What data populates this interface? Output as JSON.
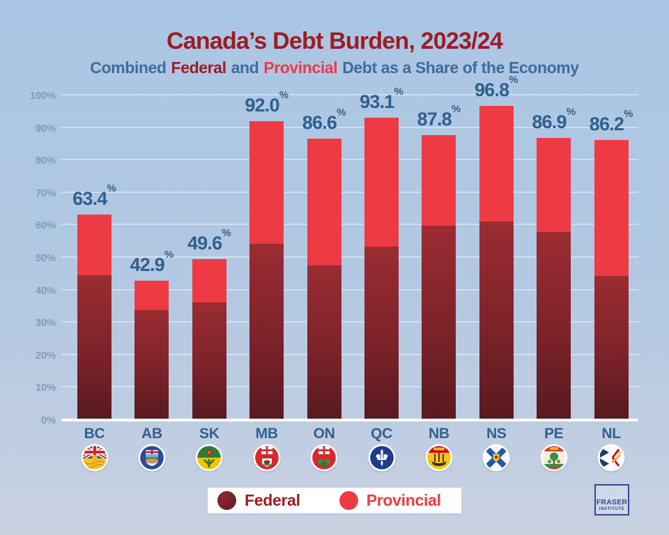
{
  "header": {
    "title": "Canada’s Debt Burden, 2023/24",
    "subtitle_combined": "Combined",
    "subtitle_federal": "Federal",
    "subtitle_and": "and",
    "subtitle_provincial": "Provincial",
    "subtitle_rest": "Debt as a Share of the Economy"
  },
  "chart_data": {
    "type": "bar",
    "stacked": true,
    "title": "Canada’s Debt Burden, 2023/24",
    "subtitle": "Combined Federal and Provincial Debt as a Share of the Economy",
    "categories": [
      "BC",
      "AB",
      "SK",
      "MB",
      "ON",
      "QC",
      "NB",
      "NS",
      "PE",
      "NL"
    ],
    "flag_icons": [
      "flag-bc-icon",
      "flag-ab-icon",
      "flag-sk-icon",
      "flag-mb-icon",
      "flag-on-icon",
      "flag-qc-icon",
      "flag-nb-icon",
      "flag-ns-icon",
      "flag-pe-icon",
      "flag-nl-icon"
    ],
    "series": [
      {
        "name": "Federal",
        "values": [
          44.7,
          33.8,
          36.3,
          54.3,
          47.6,
          53.5,
          59.8,
          61.2,
          58.0,
          44.4
        ]
      },
      {
        "name": "Provincial",
        "values": [
          18.7,
          9.1,
          13.3,
          37.7,
          39.0,
          39.6,
          28.0,
          35.6,
          28.9,
          41.8
        ]
      }
    ],
    "totals": [
      63.4,
      42.9,
      49.6,
      92.0,
      86.6,
      93.1,
      87.8,
      96.8,
      86.9,
      86.2
    ],
    "total_labels": [
      "63.4",
      "42.9",
      "49.6",
      "92.0",
      "86.6",
      "93.1",
      "87.8",
      "96.8",
      "86.9",
      "86.2"
    ],
    "percent_suffix": "%",
    "xlabel": "",
    "ylabel": "",
    "ylim": [
      0,
      100
    ],
    "ytick_labels": [
      "0%",
      "10%",
      "20%",
      "30%",
      "40%",
      "50%",
      "60%",
      "70%",
      "80%",
      "90%",
      "100%"
    ],
    "grid": true,
    "legend_position": "bottom"
  },
  "legend": {
    "federal": "Federal",
    "provincial": "Provincial"
  },
  "logo": {
    "line1": "FRASER",
    "line2": "INSTITUTE"
  },
  "colors": {
    "title_red": "#9d1c23",
    "subtitle_blue": "#406c99",
    "provincial_red": "#ee3a43",
    "federal_dark_top": "#9b2c33",
    "federal_dark_bottom": "#571a1f",
    "value_label_blue": "#2f608c",
    "axis_tick_blue": "#7d9cbe",
    "category_label_blue": "#33608d",
    "background_top": "#aac6e4",
    "background_bottom": "#c9d1e1",
    "axis_line_white": "#ffffff",
    "logo_navy": "#2b4a94"
  }
}
